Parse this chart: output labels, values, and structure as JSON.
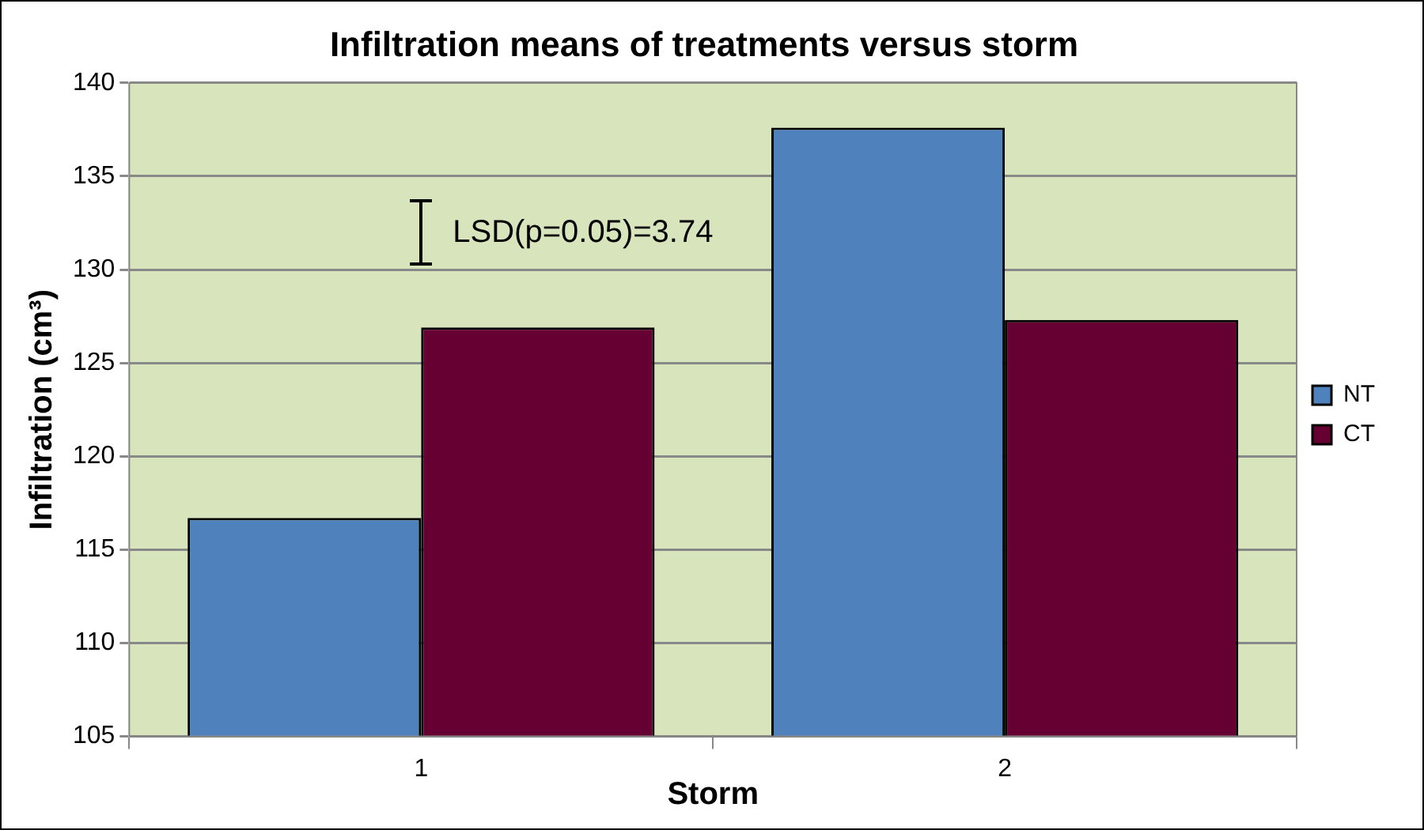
{
  "chart_data": {
    "type": "bar",
    "title": "Infiltration means of treatments versus storm",
    "xlabel": "Storm",
    "ylabel": "Infiltration (cm³)",
    "categories": [
      "1",
      "2"
    ],
    "series": [
      {
        "name": "NT",
        "color": "#4f81bd",
        "values": [
          116.7,
          137.6
        ]
      },
      {
        "name": "CT",
        "color": "#660033",
        "values": [
          126.9,
          127.3
        ]
      }
    ],
    "ylim": [
      105,
      140
    ],
    "yticks": [
      105,
      110,
      115,
      120,
      125,
      130,
      135,
      140
    ],
    "grid": "y",
    "legend": "right",
    "annotations": [
      "LSD(p=0.05)=3.74"
    ]
  }
}
